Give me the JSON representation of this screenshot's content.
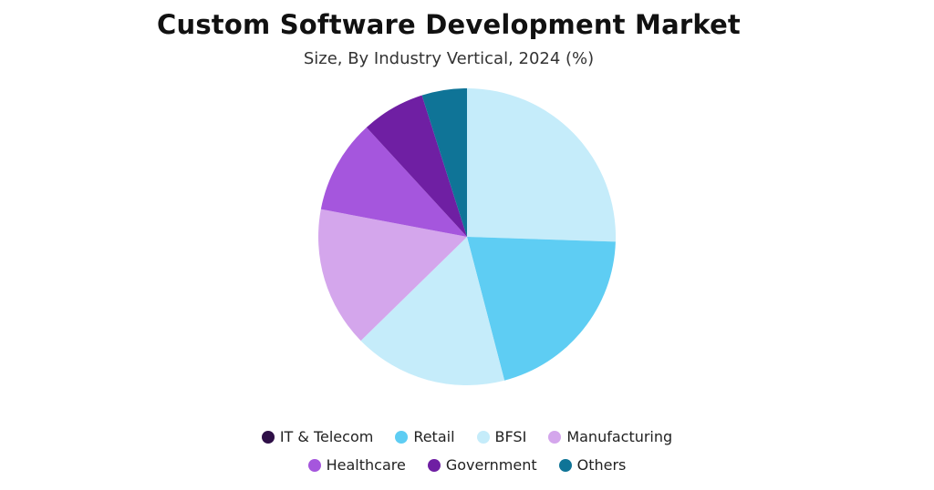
{
  "chart_data": {
    "type": "pie",
    "title": "Custom Software Development Market",
    "subtitle": "Size, By Industry Vertical, 2024 (%)",
    "categories": [
      "IT & Telecom",
      "Retail",
      "BFSI",
      "Manufacturing",
      "Healthcare",
      "Government",
      "Others"
    ],
    "values": [
      25.5,
      20.4,
      16.7,
      15.3,
      10.2,
      6.9,
      4.9
    ],
    "legend_colors": [
      "#2e0f47",
      "#5ecdf3",
      "#c5ecfa",
      "#d4a6ec",
      "#a556dd",
      "#6f1fa3",
      "#0f7497"
    ],
    "slice_colors": [
      "#c5ecfa",
      "#5ecdf3",
      "#c5ecfa",
      "#d4a6ec",
      "#a556dd",
      "#6f1fa3",
      "#0f7497"
    ],
    "start_angle": "12 o'clock",
    "direction": "clockwise",
    "legend_position": "bottom"
  }
}
